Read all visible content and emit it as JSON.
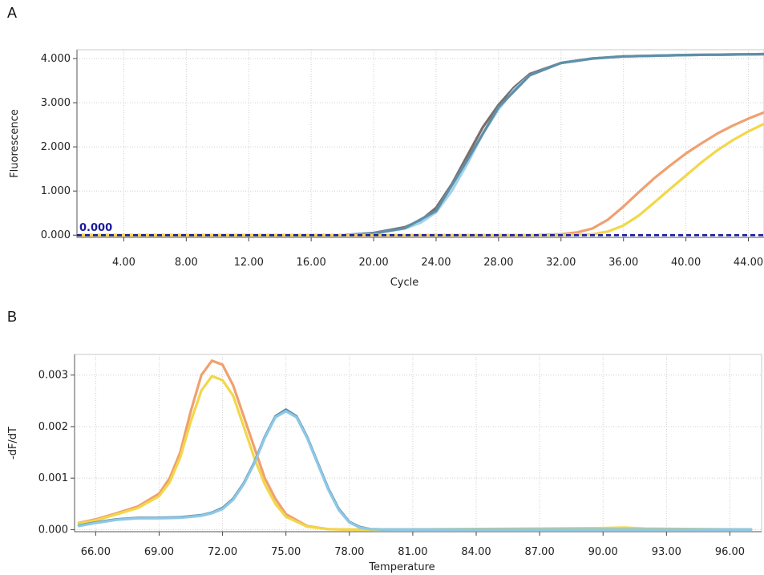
{
  "panel_labels": {
    "a": "A",
    "b": "B"
  },
  "chart_data": [
    {
      "type": "line",
      "panel": "A",
      "title": "",
      "xlabel": "Cycle",
      "ylabel": "Fluorescence",
      "xlim": [
        1,
        45
      ],
      "ylim": [
        -0.05,
        4.2
      ],
      "x_ticks": [
        4,
        8,
        12,
        16,
        20,
        24,
        28,
        32,
        36,
        40,
        44
      ],
      "x_tick_labels": [
        "4.00",
        "8.00",
        "12.00",
        "16.00",
        "20.00",
        "24.00",
        "28.00",
        "32.00",
        "36.00",
        "40.00",
        "44.00"
      ],
      "y_ticks": [
        0,
        1,
        2,
        3,
        4
      ],
      "y_tick_labels": [
        "0.000",
        "1.000",
        "2.000",
        "3.000",
        "4.000"
      ],
      "grid": true,
      "threshold": {
        "value": 0.0,
        "label": "0.000",
        "color": "#1a1aa0"
      },
      "series": [
        {
          "color": "#7a6e6a",
          "x": [
            1,
            18,
            20,
            22,
            23,
            24,
            25,
            26,
            27,
            28,
            29,
            30,
            32,
            34,
            36,
            40,
            45
          ],
          "y": [
            0,
            0,
            0.05,
            0.18,
            0.33,
            0.62,
            1.15,
            1.8,
            2.45,
            2.95,
            3.35,
            3.65,
            3.9,
            4.0,
            4.05,
            4.08,
            4.1
          ]
        },
        {
          "color": "#9fd2ee",
          "x": [
            1,
            18,
            20,
            22,
            23,
            24,
            25,
            26,
            27,
            28,
            29,
            30,
            32,
            34,
            36,
            40,
            45
          ],
          "y": [
            0,
            0,
            0.04,
            0.15,
            0.28,
            0.52,
            1.0,
            1.62,
            2.3,
            2.85,
            3.3,
            3.62,
            3.9,
            4.0,
            4.05,
            4.08,
            4.1
          ]
        },
        {
          "color": "#5f8fa8",
          "x": [
            1,
            18,
            20,
            22,
            24,
            26,
            28,
            30,
            32,
            34,
            36,
            40,
            45
          ],
          "y": [
            0,
            0,
            0.04,
            0.16,
            0.55,
            1.7,
            2.9,
            3.62,
            3.9,
            4.0,
            4.05,
            4.08,
            4.1
          ]
        },
        {
          "color": "#f0a070",
          "x": [
            1,
            30,
            32,
            33,
            34,
            35,
            36,
            37,
            38,
            39,
            40,
            41,
            42,
            43,
            44,
            45
          ],
          "y": [
            0,
            0,
            0.02,
            0.06,
            0.15,
            0.35,
            0.65,
            0.98,
            1.3,
            1.58,
            1.85,
            2.08,
            2.3,
            2.48,
            2.64,
            2.78
          ]
        },
        {
          "color": "#f2d74a",
          "x": [
            1,
            32,
            34,
            35,
            36,
            37,
            38,
            39,
            40,
            41,
            42,
            43,
            44,
            45
          ],
          "y": [
            0,
            0,
            0.02,
            0.08,
            0.22,
            0.45,
            0.75,
            1.05,
            1.35,
            1.65,
            1.92,
            2.15,
            2.35,
            2.52
          ]
        }
      ]
    },
    {
      "type": "line",
      "panel": "B",
      "title": "",
      "xlabel": "Temperature",
      "ylabel": "-dF/dT",
      "xlim": [
        65,
        97.5
      ],
      "ylim": [
        -4e-05,
        0.0034
      ],
      "x_ticks": [
        66,
        69,
        72,
        75,
        78,
        81,
        84,
        87,
        90,
        93,
        96
      ],
      "x_tick_labels": [
        "66.00",
        "69.00",
        "72.00",
        "75.00",
        "78.00",
        "81.00",
        "84.00",
        "87.00",
        "90.00",
        "93.00",
        "96.00"
      ],
      "y_ticks": [
        0,
        0.001,
        0.002,
        0.003
      ],
      "y_tick_labels": [
        "0.000",
        "0.001",
        "0.002",
        "0.003"
      ],
      "grid": true,
      "series": [
        {
          "color": "#f0a070",
          "x": [
            65.2,
            66,
            67,
            68,
            69,
            69.5,
            70,
            70.5,
            71,
            71.5,
            72,
            72.5,
            73,
            73.5,
            74,
            74.5,
            75,
            76,
            77,
            78,
            79,
            80,
            97
          ],
          "y": [
            0.00013,
            0.0002,
            0.00032,
            0.00045,
            0.0007,
            0.001,
            0.0015,
            0.0023,
            0.003,
            0.00328,
            0.0032,
            0.0028,
            0.0022,
            0.0016,
            0.001,
            0.0006,
            0.0003,
            7e-05,
            1e-05,
            0,
            0,
            0,
            0
          ]
        },
        {
          "color": "#f2d74a",
          "x": [
            65.2,
            66,
            67,
            68,
            69,
            69.5,
            70,
            70.5,
            71,
            71.5,
            72,
            72.5,
            73,
            73.5,
            74,
            74.5,
            75,
            76,
            77,
            78,
            79,
            80,
            90,
            91,
            92,
            97
          ],
          "y": [
            0.00012,
            0.00018,
            0.0003,
            0.00042,
            0.00065,
            0.00092,
            0.0014,
            0.0021,
            0.0027,
            0.00298,
            0.0029,
            0.0026,
            0.002,
            0.0014,
            0.00088,
            0.0005,
            0.00025,
            6e-05,
            1e-05,
            0,
            0,
            0,
            3e-05,
            4e-05,
            2e-05,
            0
          ]
        },
        {
          "color": "#5f8fa8",
          "x": [
            65.2,
            66,
            67,
            68,
            69,
            70,
            71,
            71.5,
            72,
            72.5,
            73,
            73.5,
            74,
            74.5,
            75,
            75.5,
            76,
            76.5,
            77,
            77.5,
            78,
            78.5,
            79,
            80,
            97
          ],
          "y": [
            8e-05,
            0.00014,
            0.0002,
            0.00023,
            0.00023,
            0.00024,
            0.00028,
            0.00033,
            0.00042,
            0.0006,
            0.0009,
            0.0013,
            0.0018,
            0.0022,
            0.00233,
            0.0022,
            0.0018,
            0.0013,
            0.0008,
            0.0004,
            0.00015,
            5e-05,
            1e-05,
            0,
            0
          ]
        },
        {
          "color": "#8ec8e6",
          "x": [
            65.2,
            66,
            67,
            68,
            69,
            70,
            71,
            71.5,
            72,
            72.5,
            73,
            73.5,
            74,
            74.5,
            75,
            75.5,
            76,
            76.5,
            77,
            77.5,
            78,
            78.5,
            79,
            80,
            97
          ],
          "y": [
            7e-05,
            0.00013,
            0.00019,
            0.00022,
            0.00022,
            0.00023,
            0.00027,
            0.00032,
            0.0004,
            0.00058,
            0.00088,
            0.00128,
            0.00178,
            0.00218,
            0.0023,
            0.00218,
            0.00178,
            0.00128,
            0.00078,
            0.00038,
            0.00014,
            4e-05,
            1e-05,
            0,
            0
          ]
        }
      ]
    }
  ]
}
